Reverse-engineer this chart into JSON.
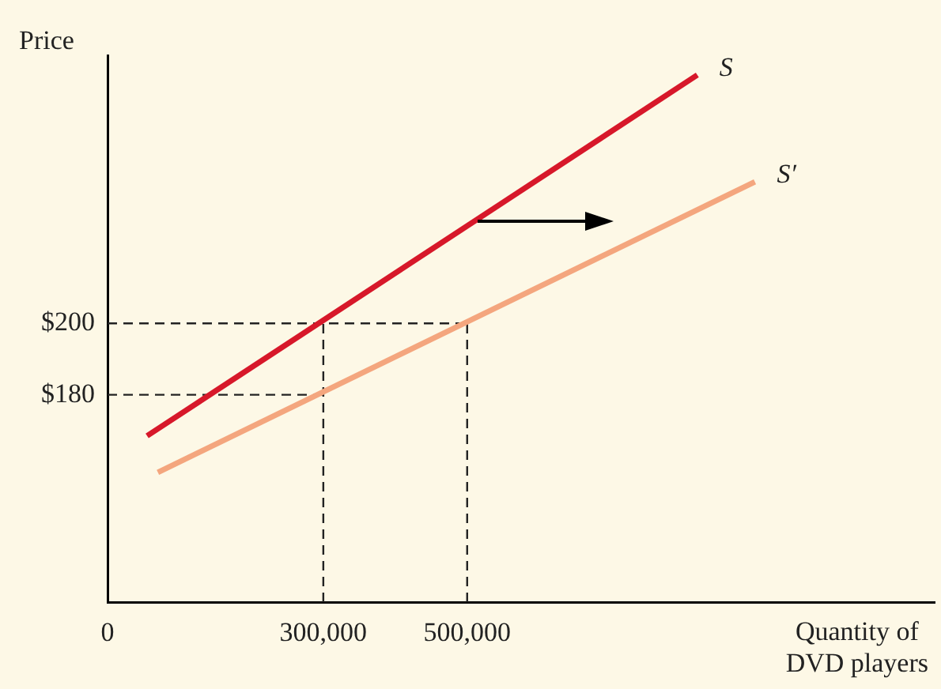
{
  "chart_data": {
    "type": "line",
    "ylabel": "Price",
    "xlabel": "Quantity of\nDVD players",
    "xlim": [
      0,
      1150000
    ],
    "ylim": [
      122,
      275
    ],
    "xticks": [
      0,
      {
        "value": 300000,
        "label": "300,000"
      },
      {
        "value": 500000,
        "label": "500,000"
      }
    ],
    "yticks": [
      {
        "value": 180,
        "label": "$180"
      },
      {
        "value": 200,
        "label": "$200"
      }
    ],
    "grid": false,
    "legend": false,
    "marker": "none",
    "series": [
      {
        "name": "S",
        "color": "#d7182a",
        "x": [
          55000,
          820000
        ],
        "values": [
          168.5,
          269.5
        ],
        "line_style": "solid"
      },
      {
        "name": "S′",
        "color": "#f4a67e",
        "x": [
          70000,
          900000
        ],
        "values": [
          158.3,
          239.6
        ],
        "line_style": "solid"
      },
      {
        "color": "#222222",
        "x": [
          0,
          500000
        ],
        "values": [
          200,
          200
        ],
        "line_style": "dashed"
      },
      {
        "color": "#222222",
        "x": [
          0,
          300000
        ],
        "values": [
          180,
          180
        ],
        "line_style": "dashed"
      },
      {
        "color": "#222222",
        "x": [
          300000,
          300000
        ],
        "values": [
          122,
          200
        ],
        "line_style": "dashed"
      },
      {
        "color": "#222222",
        "x": [
          500000,
          500000
        ],
        "values": [
          122,
          200
        ],
        "line_style": "dashed"
      }
    ]
  }
}
